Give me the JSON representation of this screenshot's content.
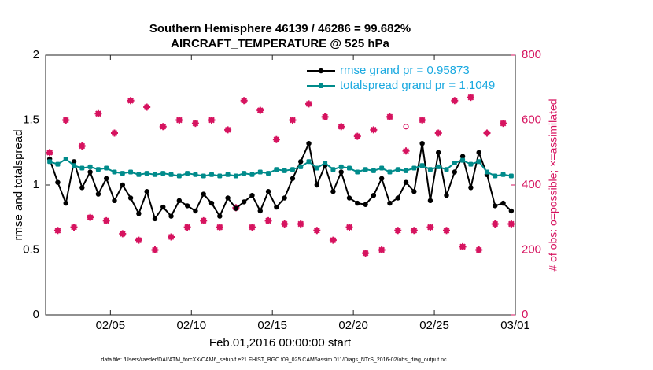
{
  "chart_data": {
    "type": "line",
    "title": "Southern Hemisphere 46139 / 46286 = 99.682%",
    "subtitle": "AIRCRAFT_TEMPERATURE @ 525 hPa",
    "xlabel": "Feb.01,2016 00:00:00 start",
    "ylabel": "rmse and totalspread",
    "y2label": "# of obs: o=possible; ×=assimilated",
    "footnote": "data file: /Users/raeder/DAI/ATM_forcXX/CAM6_setup/f.e21.FHIST_BGC.f09_025.CAM6assim.011/Diags_NTrS_2016-02/obs_diag_output.nc",
    "x": [
      0.25,
      0.75,
      1.25,
      1.75,
      2.25,
      2.75,
      3.25,
      3.75,
      4.25,
      4.75,
      5.25,
      5.75,
      6.25,
      6.75,
      7.25,
      7.75,
      8.25,
      8.75,
      9.25,
      9.75,
      10.25,
      10.75,
      11.25,
      11.75,
      12.25,
      12.75,
      13.25,
      13.75,
      14.25,
      14.75,
      15.25,
      15.75,
      16.25,
      16.75,
      17.25,
      17.75,
      18.25,
      18.75,
      19.25,
      19.75,
      20.25,
      20.75,
      21.25,
      21.75,
      22.25,
      22.75,
      23.25,
      23.75,
      24.25,
      24.75,
      25.25,
      25.75,
      26.25,
      26.75,
      27.25,
      27.75,
      28.25,
      28.75
    ],
    "xlim": [
      0,
      29
    ],
    "xticks": [
      {
        "value": 4,
        "label": "02/05"
      },
      {
        "value": 9,
        "label": "02/10"
      },
      {
        "value": 14,
        "label": "02/15"
      },
      {
        "value": 19,
        "label": "02/20"
      },
      {
        "value": 24,
        "label": "02/25"
      },
      {
        "value": 29,
        "label": "03/01"
      }
    ],
    "ylim": [
      0,
      2
    ],
    "yticks": [
      0,
      0.5,
      1,
      1.5,
      2
    ],
    "y2lim": [
      0,
      800
    ],
    "y2ticks": [
      0,
      200,
      400,
      600,
      800
    ],
    "legend": "upper right",
    "series": [
      {
        "name": "rmse grand pr = 0.95873",
        "color": "#000000",
        "marker": "dot",
        "values": [
          1.2,
          1.02,
          0.86,
          1.18,
          0.98,
          1.1,
          0.93,
          1.05,
          0.88,
          1.0,
          0.9,
          0.78,
          0.95,
          0.74,
          0.83,
          0.76,
          0.88,
          0.84,
          0.8,
          0.93,
          0.86,
          0.76,
          0.9,
          0.82,
          0.87,
          0.92,
          0.8,
          0.95,
          0.83,
          0.9,
          1.05,
          1.18,
          1.32,
          1.0,
          1.15,
          0.95,
          1.1,
          0.9,
          0.86,
          0.85,
          0.92,
          1.05,
          0.86,
          0.9,
          1.02,
          0.95,
          1.32,
          0.88,
          1.25,
          0.92,
          1.1,
          1.22,
          0.98,
          1.25,
          1.08,
          0.84,
          0.86,
          0.8
        ]
      },
      {
        "name": "totalspread grand pr = 1.1049",
        "color": "#008b8b",
        "marker": "square",
        "values": [
          1.18,
          1.16,
          1.2,
          1.15,
          1.13,
          1.14,
          1.12,
          1.13,
          1.1,
          1.09,
          1.1,
          1.08,
          1.09,
          1.08,
          1.09,
          1.08,
          1.07,
          1.09,
          1.08,
          1.07,
          1.08,
          1.07,
          1.08,
          1.07,
          1.09,
          1.08,
          1.1,
          1.09,
          1.12,
          1.11,
          1.12,
          1.14,
          1.18,
          1.13,
          1.17,
          1.12,
          1.14,
          1.13,
          1.1,
          1.12,
          1.11,
          1.13,
          1.1,
          1.12,
          1.11,
          1.13,
          1.15,
          1.12,
          1.14,
          1.12,
          1.17,
          1.19,
          1.16,
          1.18,
          1.1,
          1.07,
          1.08,
          1.07
        ]
      },
      {
        "color": "#d6135f",
        "marker": "circle",
        "axis": "y2",
        "values": [
          500,
          260,
          600,
          270,
          520,
          300,
          620,
          290,
          560,
          250,
          660,
          230,
          640,
          200,
          580,
          240,
          600,
          270,
          590,
          290,
          600,
          270,
          570,
          330,
          660,
          270,
          630,
          290,
          540,
          280,
          600,
          280,
          650,
          260,
          610,
          230,
          580,
          270,
          550,
          190,
          570,
          200,
          610,
          260,
          580,
          260,
          600,
          270,
          560,
          260,
          660,
          210,
          670,
          200,
          560,
          280,
          590,
          280
        ]
      },
      {
        "color": "#d6135f",
        "marker": "star",
        "axis": "y2",
        "values": [
          500,
          260,
          600,
          270,
          520,
          300,
          620,
          290,
          560,
          250,
          660,
          230,
          640,
          200,
          580,
          240,
          600,
          270,
          590,
          290,
          600,
          270,
          570,
          330,
          660,
          270,
          630,
          290,
          540,
          280,
          600,
          280,
          650,
          260,
          610,
          230,
          580,
          270,
          550,
          190,
          570,
          200,
          610,
          260,
          505,
          260,
          600,
          270,
          560,
          260,
          660,
          210,
          670,
          200,
          560,
          280,
          590,
          280
        ]
      }
    ]
  }
}
